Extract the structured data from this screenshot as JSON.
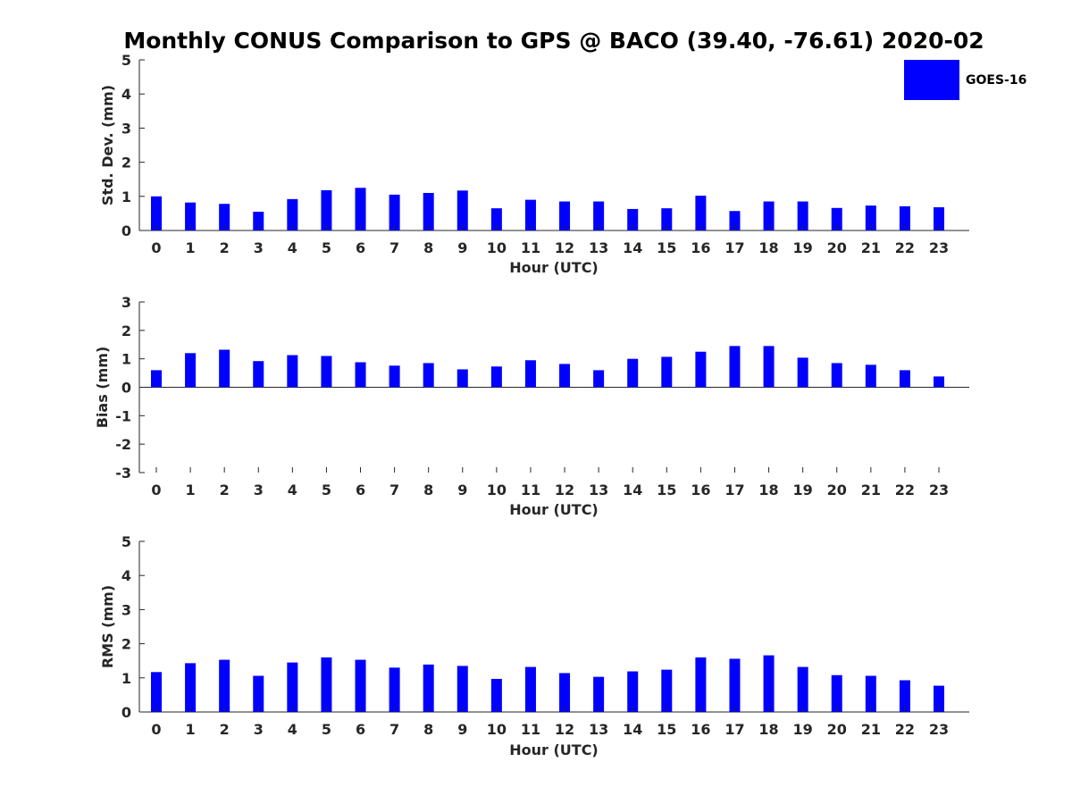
{
  "figure": {
    "title": "Monthly CONUS Comparison to GPS @ BACO (39.40, -76.61) 2020-02"
  },
  "legend": {
    "label": "GOES-16",
    "color": "#0000ff"
  },
  "chart_data": [
    {
      "type": "bar",
      "title": "Monthly CONUS Comparison to GPS @ BACO (39.40, -76.61) 2020-02",
      "xlabel": "Hour (UTC)",
      "ylabel": "Std. Dev. (mm)",
      "categories": [
        "0",
        "1",
        "2",
        "3",
        "4",
        "5",
        "6",
        "7",
        "8",
        "9",
        "10",
        "11",
        "12",
        "13",
        "14",
        "15",
        "16",
        "17",
        "18",
        "19",
        "20",
        "21",
        "22",
        "23"
      ],
      "ylim": [
        0,
        5
      ],
      "yticks": [
        "0",
        "1",
        "2",
        "3",
        "4",
        "5"
      ],
      "series": [
        {
          "name": "GOES-16",
          "color": "#0000ff",
          "values": [
            1.0,
            0.82,
            0.78,
            0.55,
            0.92,
            1.18,
            1.25,
            1.05,
            1.1,
            1.17,
            0.65,
            0.9,
            0.85,
            0.85,
            0.63,
            0.65,
            1.02,
            0.57,
            0.85,
            0.85,
            0.66,
            0.73,
            0.71,
            0.68
          ]
        }
      ]
    },
    {
      "type": "bar",
      "xlabel": "Hour (UTC)",
      "ylabel": "Bias (mm)",
      "categories": [
        "0",
        "1",
        "2",
        "3",
        "4",
        "5",
        "6",
        "7",
        "8",
        "9",
        "10",
        "11",
        "12",
        "13",
        "14",
        "15",
        "16",
        "17",
        "18",
        "19",
        "20",
        "21",
        "22",
        "23"
      ],
      "ylim": [
        -3,
        3
      ],
      "yticks": [
        "-3",
        "-2",
        "-1",
        "0",
        "1",
        "2",
        "3"
      ],
      "series": [
        {
          "name": "GOES-16",
          "color": "#0000ff",
          "values": [
            0.6,
            1.2,
            1.32,
            0.92,
            1.13,
            1.1,
            0.88,
            0.76,
            0.85,
            0.63,
            0.73,
            0.95,
            0.82,
            0.6,
            1.0,
            1.07,
            1.25,
            1.45,
            1.45,
            1.04,
            0.85,
            0.79,
            0.6,
            0.38
          ]
        }
      ]
    },
    {
      "type": "bar",
      "xlabel": "Hour (UTC)",
      "ylabel": "RMS (mm)",
      "categories": [
        "0",
        "1",
        "2",
        "3",
        "4",
        "5",
        "6",
        "7",
        "8",
        "9",
        "10",
        "11",
        "12",
        "13",
        "14",
        "15",
        "16",
        "17",
        "18",
        "19",
        "20",
        "21",
        "22",
        "23"
      ],
      "ylim": [
        0,
        5
      ],
      "yticks": [
        "0",
        "1",
        "2",
        "3",
        "4",
        "5"
      ],
      "series": [
        {
          "name": "GOES-16",
          "color": "#0000ff",
          "values": [
            1.17,
            1.43,
            1.53,
            1.06,
            1.45,
            1.6,
            1.53,
            1.3,
            1.39,
            1.35,
            0.97,
            1.32,
            1.14,
            1.03,
            1.19,
            1.24,
            1.6,
            1.56,
            1.66,
            1.32,
            1.08,
            1.06,
            0.93,
            0.77
          ]
        }
      ]
    }
  ]
}
